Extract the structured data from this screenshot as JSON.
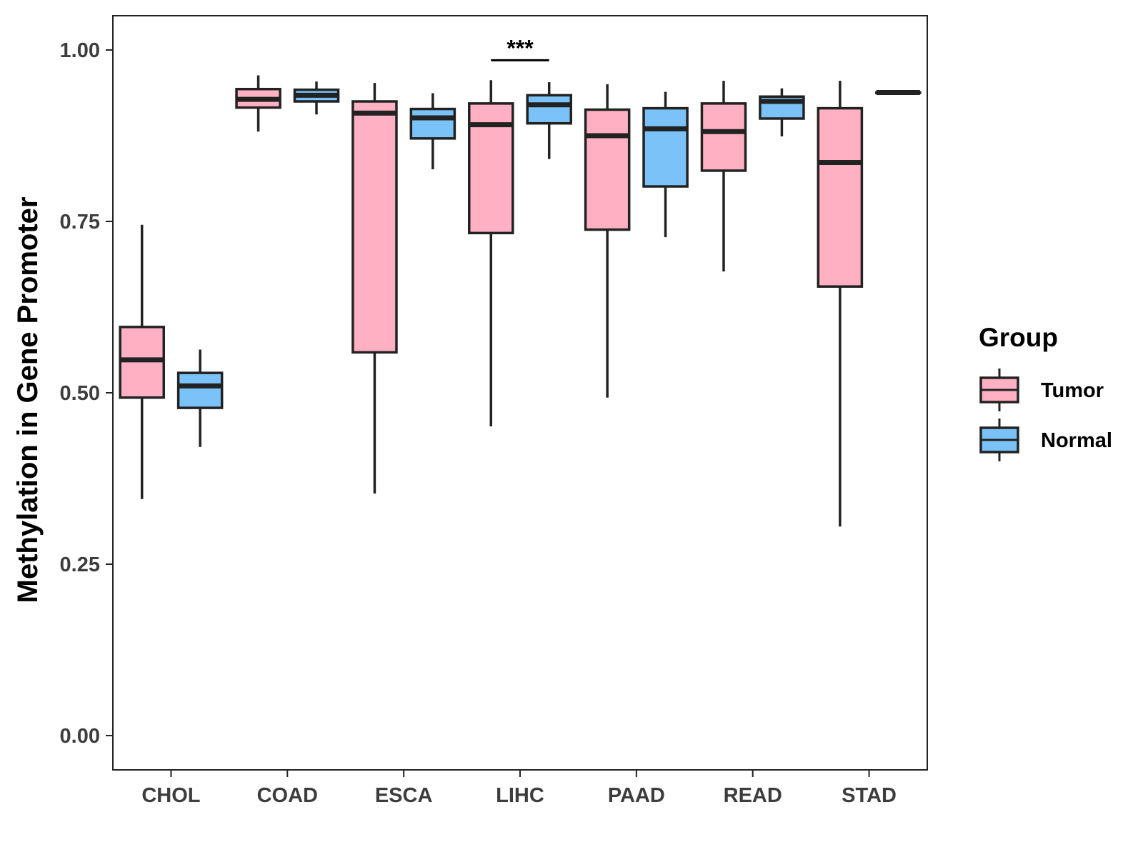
{
  "chart_data": {
    "type": "boxplot",
    "title": "",
    "xlabel": "",
    "ylabel": "Methylation in Gene Promoter",
    "ylim": [
      -0.05,
      1.05
    ],
    "yticks": [
      0.0,
      0.25,
      0.5,
      0.75,
      1.0
    ],
    "ytick_labels": [
      "0.00",
      "0.25",
      "0.50",
      "0.75",
      "1.00"
    ],
    "categories": [
      "CHOL",
      "COAD",
      "ESCA",
      "LIHC",
      "PAAD",
      "READ",
      "STAD"
    ],
    "legend": {
      "title": "Group",
      "position": "right",
      "entries": [
        {
          "name": "Tumor",
          "color": "#ffb0c2"
        },
        {
          "name": "Normal",
          "color": "#7ac2f7"
        }
      ]
    },
    "series": [
      {
        "name": "Tumor",
        "color": "#ffb0c2",
        "boxes": [
          {
            "category": "CHOL",
            "min": 0.345,
            "q1": 0.493,
            "median": 0.548,
            "q3": 0.596,
            "max": 0.745
          },
          {
            "category": "COAD",
            "min": 0.881,
            "q1": 0.916,
            "median": 0.928,
            "q3": 0.943,
            "max": 0.963
          },
          {
            "category": "ESCA",
            "min": 0.353,
            "q1": 0.559,
            "median": 0.908,
            "q3": 0.925,
            "max": 0.952
          },
          {
            "category": "LIHC",
            "min": 0.451,
            "q1": 0.733,
            "median": 0.891,
            "q3": 0.922,
            "max": 0.956
          },
          {
            "category": "PAAD",
            "min": 0.493,
            "q1": 0.738,
            "median": 0.875,
            "q3": 0.913,
            "max": 0.95
          },
          {
            "category": "READ",
            "min": 0.677,
            "q1": 0.824,
            "median": 0.881,
            "q3": 0.922,
            "max": 0.955
          },
          {
            "category": "STAD",
            "min": 0.305,
            "q1": 0.655,
            "median": 0.836,
            "q3": 0.915,
            "max": 0.955
          }
        ]
      },
      {
        "name": "Normal",
        "color": "#7ac2f7",
        "boxes": [
          {
            "category": "CHOL",
            "min": 0.421,
            "q1": 0.478,
            "median": 0.51,
            "q3": 0.529,
            "max": 0.563
          },
          {
            "category": "COAD",
            "min": 0.906,
            "q1": 0.925,
            "median": 0.934,
            "q3": 0.942,
            "max": 0.954
          },
          {
            "category": "ESCA",
            "min": 0.826,
            "q1": 0.871,
            "median": 0.901,
            "q3": 0.914,
            "max": 0.937
          },
          {
            "category": "LIHC",
            "min": 0.841,
            "q1": 0.893,
            "median": 0.92,
            "q3": 0.934,
            "max": 0.953
          },
          {
            "category": "PAAD",
            "min": 0.727,
            "q1": 0.801,
            "median": 0.885,
            "q3": 0.915,
            "max": 0.939
          },
          {
            "category": "READ",
            "min": 0.874,
            "q1": 0.9,
            "median": 0.925,
            "q3": 0.932,
            "max": 0.944
          },
          {
            "category": "STAD",
            "min": 0.938,
            "q1": 0.938,
            "median": 0.938,
            "q3": 0.938,
            "max": 0.938
          }
        ]
      }
    ],
    "annotations": [
      {
        "category": "LIHC",
        "text": "***",
        "y": 0.985
      }
    ]
  }
}
